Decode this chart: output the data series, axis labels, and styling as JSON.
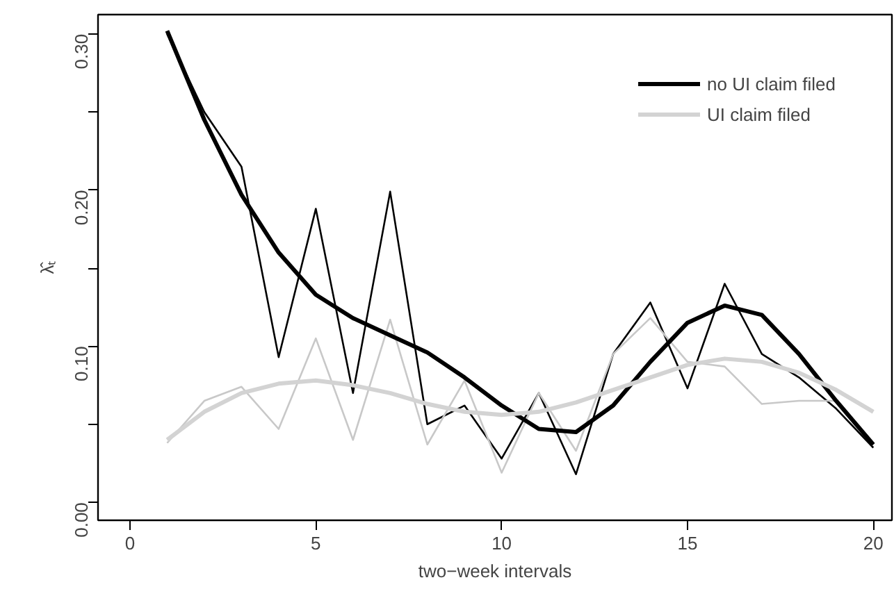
{
  "chart_data": {
    "type": "line",
    "xlabel": "two−week intervals",
    "ylabel": "λ̂ₜ",
    "xlim": [
      -0.86,
      20.5
    ],
    "ylim": [
      -0.0115,
      0.3124
    ],
    "xticks": [
      0,
      5,
      10,
      15,
      20
    ],
    "yticks": [
      {
        "value": 0,
        "label": "0.00"
      },
      {
        "value": 0.05,
        "label": null
      },
      {
        "value": 0.1,
        "label": "0.10"
      },
      {
        "value": 0.15,
        "label": null
      },
      {
        "value": 0.2,
        "label": "0.20"
      },
      {
        "value": 0.25,
        "label": null
      },
      {
        "value": 0.3,
        "label": "0.30"
      }
    ],
    "x": [
      1,
      2,
      3,
      4,
      5,
      6,
      7,
      8,
      9,
      10,
      11,
      12,
      13,
      14,
      15,
      16,
      17,
      18,
      19,
      20
    ],
    "legend": "top right",
    "grid": false,
    "line_style": "solid",
    "marker": "none",
    "series": [
      {
        "color": "#000000",
        "values": [
          0.3,
          0.25,
          0.215,
          0.093,
          0.188,
          0.07,
          0.199,
          0.05,
          0.062,
          0.028,
          0.07,
          0.018,
          0.095,
          0.128,
          0.073,
          0.14,
          0.095,
          0.08,
          0.06,
          0.035
        ]
      },
      {
        "color": "#c8c8c8",
        "values": [
          0.038,
          0.065,
          0.074,
          0.047,
          0.105,
          0.04,
          0.117,
          0.037,
          0.078,
          0.019,
          0.07,
          0.033,
          0.095,
          0.118,
          0.09,
          0.087,
          0.063,
          0.065,
          0.065,
          0.037
        ]
      },
      {
        "name": "no UI claim filed",
        "color": "#000000",
        "values": [
          0.302,
          0.245,
          0.197,
          0.16,
          0.133,
          0.118,
          0.107,
          0.096,
          0.08,
          0.062,
          0.047,
          0.045,
          0.062,
          0.09,
          0.115,
          0.126,
          0.12,
          0.095,
          0.065,
          0.037
        ]
      },
      {
        "name": "UI claim filed",
        "color": "#d3d3d3",
        "values": [
          0.04,
          0.058,
          0.07,
          0.076,
          0.078,
          0.075,
          0.07,
          0.063,
          0.058,
          0.056,
          0.058,
          0.064,
          0.072,
          0.08,
          0.088,
          0.092,
          0.09,
          0.083,
          0.072,
          0.058
        ]
      }
    ]
  }
}
